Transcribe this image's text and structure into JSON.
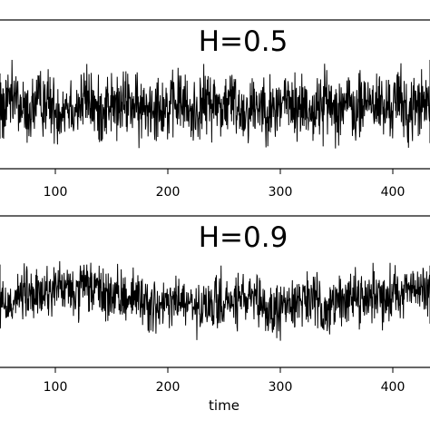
{
  "chart_data": [
    {
      "type": "line",
      "title": "H=0.5",
      "xlabel": "",
      "ylabel": "",
      "xlim": [
        0,
        450
      ],
      "ylim": [
        -4.5,
        4.5
      ],
      "x_ticks": [
        100,
        200,
        300,
        400
      ],
      "grid": false,
      "series": [
        {
          "x_range": [
            0,
            450
          ],
          "values": [
            0.1,
            -0.4,
            0.8,
            -1.1,
            0.3,
            0.9,
            -0.7,
            1.4,
            -1.5,
            0.2,
            1.1,
            -0.9,
            0.5,
            -0.2,
            1.6,
            -1.3,
            0.7,
            -0.5,
            1.0,
            -1.2,
            0.4,
            0.6,
            -0.8,
            1.3,
            -1.6,
            0.2,
            0.9,
            -0.3,
            1.2,
            -1.0,
            0.0,
            0.8,
            -1.4,
            1.5,
            -0.6,
            0.3,
            -1.1,
            1.0,
            -0.2,
            0.7,
            -1.3,
            1.1,
            0.4,
            -0.9,
            1.7,
            -1.5,
            0.5,
            -0.1,
            0.9,
            -1.2
          ]
        }
      ]
    },
    {
      "type": "line",
      "title": "H=0.9",
      "xlabel": "time",
      "ylabel": "",
      "xlim": [
        0,
        450
      ],
      "ylim": [
        -4.5,
        4.5
      ],
      "x_ticks": [
        100,
        200,
        300,
        400
      ],
      "grid": false,
      "series": [
        {
          "x_range": [
            0,
            450
          ],
          "values": [
            0.3,
            0.6,
            0.2,
            0.9,
            0.5,
            0.1,
            -0.3,
            0.4,
            0.7,
            0.3,
            0.8,
            1.2,
            0.9,
            0.6,
            1.3,
            0.8,
            0.5,
            0.2,
            0.6,
            0.4,
            -0.2,
            -0.6,
            -0.1,
            0.2,
            -0.4,
            -0.8,
            -0.3,
            0.1,
            -0.2,
            0.3,
            0.0,
            -0.5,
            -0.9,
            -0.4,
            0.1,
            0.4,
            -0.1,
            -0.6,
            -0.2,
            0.3,
            0.6,
            0.2,
            0.7,
            0.4,
            0.9,
            1.1,
            0.7,
            1.2,
            0.8,
            0.5
          ]
        }
      ]
    }
  ]
}
